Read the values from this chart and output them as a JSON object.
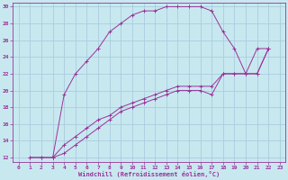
{
  "xlabel": "Windchill (Refroidissement éolien,°C)",
  "xlim": [
    -0.5,
    23.5
  ],
  "ylim": [
    11.5,
    30.5
  ],
  "xticks": [
    0,
    1,
    2,
    3,
    4,
    5,
    6,
    7,
    8,
    9,
    10,
    11,
    12,
    13,
    14,
    15,
    16,
    17,
    18,
    19,
    20,
    21,
    22,
    23
  ],
  "yticks": [
    12,
    14,
    16,
    18,
    20,
    22,
    24,
    26,
    28,
    30
  ],
  "bg_color": "#c8e8f0",
  "line_color": "#993399",
  "grid_color": "#aaccdd",
  "curves": [
    {
      "x": [
        1,
        2,
        3,
        4,
        5,
        6,
        7,
        8,
        9,
        10,
        11,
        12,
        13,
        14,
        15,
        16,
        17,
        18,
        19,
        20,
        21,
        22
      ],
      "y": [
        12,
        12,
        12,
        19.5,
        22,
        23.5,
        25,
        27,
        28,
        29,
        29.5,
        29.5,
        30,
        30,
        30,
        30,
        29.5,
        27,
        25,
        22,
        25,
        25
      ]
    },
    {
      "x": [
        1,
        2,
        3,
        4,
        5,
        6,
        7,
        8,
        9,
        10,
        11,
        12,
        13,
        14,
        15,
        16,
        17,
        18,
        19,
        20,
        21,
        22
      ],
      "y": [
        12,
        12,
        12,
        12.5,
        13.5,
        14.5,
        15.5,
        16.5,
        17.5,
        18,
        18.5,
        19,
        19.5,
        20,
        20,
        20,
        19.5,
        22,
        22,
        22,
        22,
        25
      ]
    },
    {
      "x": [
        3,
        4,
        5,
        6,
        7,
        8,
        9,
        10,
        11,
        12,
        13,
        14,
        15,
        16,
        17,
        18,
        19,
        20,
        21,
        22
      ],
      "y": [
        12,
        13.5,
        14.5,
        15.5,
        16.5,
        17,
        18,
        18.5,
        19,
        19.5,
        20,
        20.5,
        20.5,
        20.5,
        20.5,
        22,
        22,
        22,
        22,
        25
      ]
    }
  ]
}
